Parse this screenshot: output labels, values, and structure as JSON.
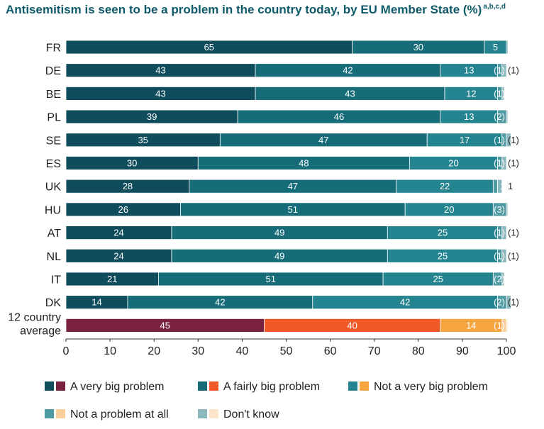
{
  "chart_data": {
    "type": "bar",
    "orientation": "horizontal",
    "stacked": true,
    "title": "Antisemitism is seen to be a problem in the country today, by EU Member State (%)",
    "title_superscript": "a,b,c,d",
    "categories": [
      "FR",
      "DE",
      "BE",
      "PL",
      "SE",
      "ES",
      "UK",
      "HU",
      "AT",
      "NL",
      "IT",
      "DK",
      "12 country average"
    ],
    "series": [
      {
        "name": "A very big problem",
        "values": [
          65,
          43,
          43,
          39,
          35,
          30,
          28,
          26,
          24,
          24,
          21,
          14,
          45
        ],
        "labels": [
          "65",
          "43",
          "43",
          "39",
          "35",
          "30",
          "28",
          "26",
          "24",
          "24",
          "21",
          "14",
          "45"
        ]
      },
      {
        "name": "A fairly big problem",
        "values": [
          30,
          42,
          43,
          46,
          47,
          48,
          47,
          51,
          49,
          49,
          51,
          42,
          40
        ],
        "labels": [
          "30",
          "42",
          "43",
          "46",
          "47",
          "48",
          "47",
          "51",
          "49",
          "49",
          "51",
          "42",
          "40"
        ]
      },
      {
        "name": "Not a very big problem",
        "values": [
          5,
          13,
          12,
          13,
          17,
          20,
          22,
          20,
          25,
          25,
          25,
          42,
          14
        ],
        "labels": [
          "5",
          "13",
          "12",
          "13",
          "17",
          "20",
          "22",
          "20",
          "25",
          "25",
          "25",
          "42",
          "14"
        ]
      },
      {
        "name": "Not a problem at all",
        "values": [
          0.3,
          1,
          1,
          2,
          1,
          1,
          1,
          3,
          1,
          1,
          2,
          2,
          1
        ],
        "labels": [
          "",
          "(1)",
          "(1)",
          "(2)",
          "(1)",
          "(1)",
          "1",
          "(3)",
          "(1)",
          "(1)",
          "(2)",
          "(2)",
          "(1)"
        ]
      },
      {
        "name": "Don't know",
        "values": [
          0,
          1,
          0.5,
          0.3,
          1,
          1,
          1,
          0.3,
          1,
          1,
          0.5,
          1,
          0.3
        ],
        "labels": [
          "",
          "(1)",
          "",
          "",
          "(1)",
          "(1)",
          "1",
          "",
          "(1)",
          "(1)",
          "",
          "(1)",
          ""
        ]
      }
    ],
    "xlim": [
      0,
      100
    ],
    "xticks": [
      "0",
      "10",
      "20",
      "30",
      "40",
      "50",
      "60",
      "70",
      "80",
      "90",
      "100"
    ],
    "grid": false,
    "legend_position": "bottom"
  },
  "colors": {
    "country": [
      "#0f4c5c",
      "#166c78",
      "#24848f",
      "#4d9aa3",
      "#8bb8bd"
    ],
    "average": [
      "#7a2040",
      "#f05a28",
      "#f7a540",
      "#fbcf9a",
      "#fde5cc"
    ],
    "title": "#0e5a6b"
  }
}
